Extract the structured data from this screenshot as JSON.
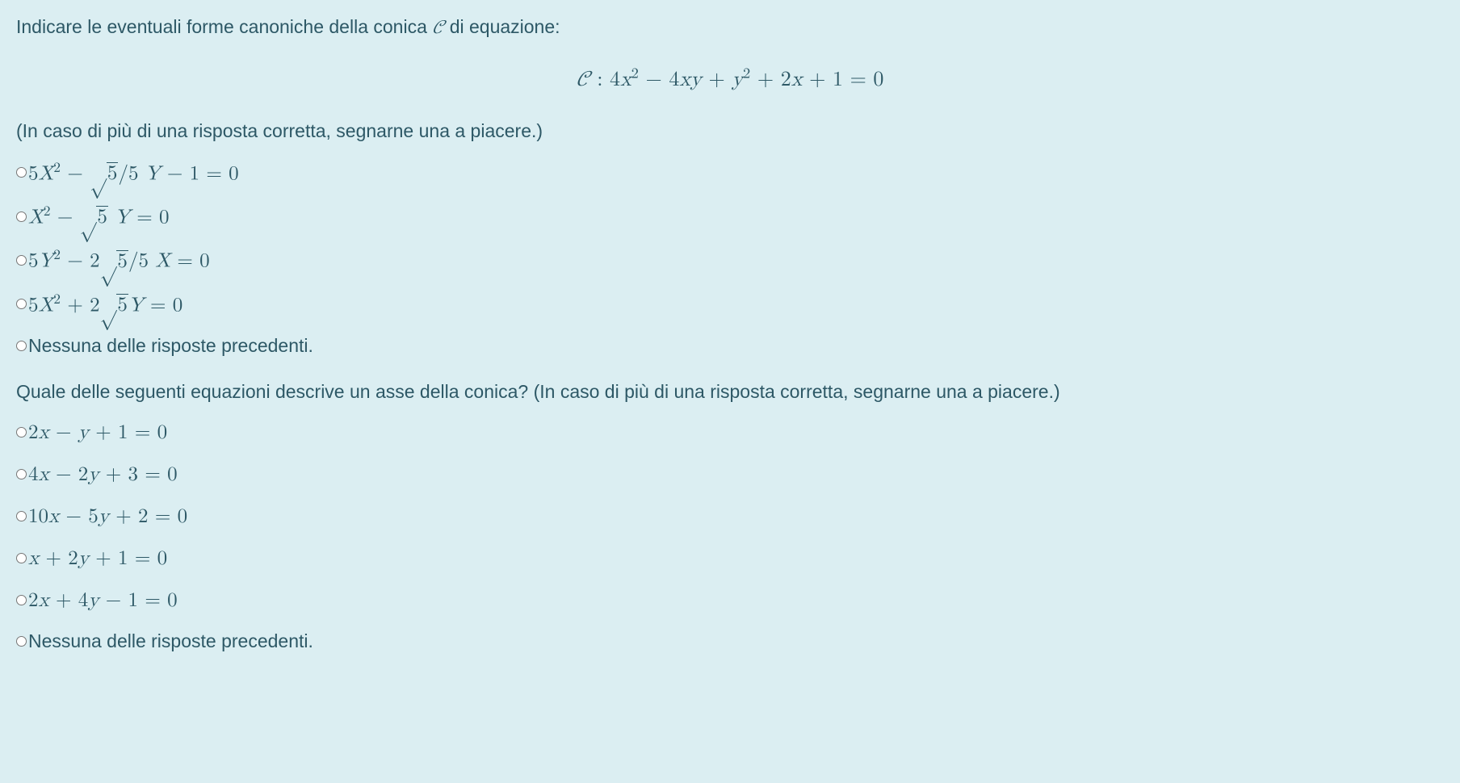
{
  "colors": {
    "background": "#dbeef2",
    "text": "#2d5866"
  },
  "question1": {
    "prompt_prefix": "Indicare le eventuali forme canoniche della conica ",
    "prompt_symbol": "𝒞",
    "prompt_suffix": " di equazione:",
    "equation": "𝒞 : 4x² − 4xy + y² + 2x + 1 = 0",
    "sub_prompt": "(In caso di più di una risposta corretta, segnarne una a piacere.)",
    "options": [
      "5X² − √5/5 Y − 1 = 0",
      "X² − √5 Y = 0",
      "5Y² − 2√5/5 X = 0",
      "5X² + 2√5 Y = 0",
      "Nessuna delle risposte precedenti."
    ]
  },
  "question2": {
    "prompt": "Quale delle seguenti equazioni descrive un asse della conica? (In caso di più di una risposta corretta, segnarne una a piacere.)",
    "options": [
      "2x − y + 1 = 0",
      "4x − 2y + 3 = 0",
      "10x − 5y + 2 = 0",
      "x + 2y + 1 = 0",
      "2x + 4y − 1 = 0",
      "Nessuna delle risposte precedenti."
    ]
  }
}
